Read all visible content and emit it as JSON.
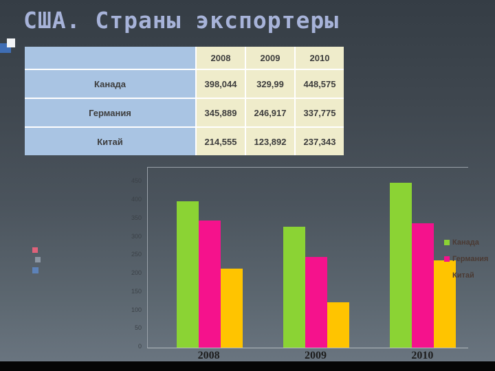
{
  "slide": {
    "title": "США. Страны экспортеры"
  },
  "table": {
    "col_headers": [
      "2008",
      "2009",
      "2010"
    ],
    "rows": [
      {
        "label": "Канада",
        "values": [
          "398,044",
          "329,99",
          "448,575"
        ]
      },
      {
        "label": "Германия",
        "values": [
          "345,889",
          "246,917",
          "337,775"
        ]
      },
      {
        "label": "Китай",
        "values": [
          "214,555",
          "123,892",
          "237,343"
        ]
      }
    ]
  },
  "chart_data": {
    "type": "bar",
    "title": "",
    "categories": [
      "2008",
      "2009",
      "2010"
    ],
    "series": [
      {
        "name": "Канада",
        "color": "#8bd334",
        "values": [
          398.044,
          329.99,
          448.575
        ]
      },
      {
        "name": "Германия",
        "color": "#f5128c",
        "values": [
          345.889,
          246.917,
          337.775
        ]
      },
      {
        "name": "Китай",
        "color": "#ffc400",
        "values": [
          214.555,
          123.892,
          237.343
        ]
      }
    ],
    "xlabel": "",
    "ylabel": "",
    "ylim": [
      0,
      490
    ],
    "ytick_step": 50,
    "ytick_max": 450,
    "legend_position": "right",
    "grid": false
  }
}
